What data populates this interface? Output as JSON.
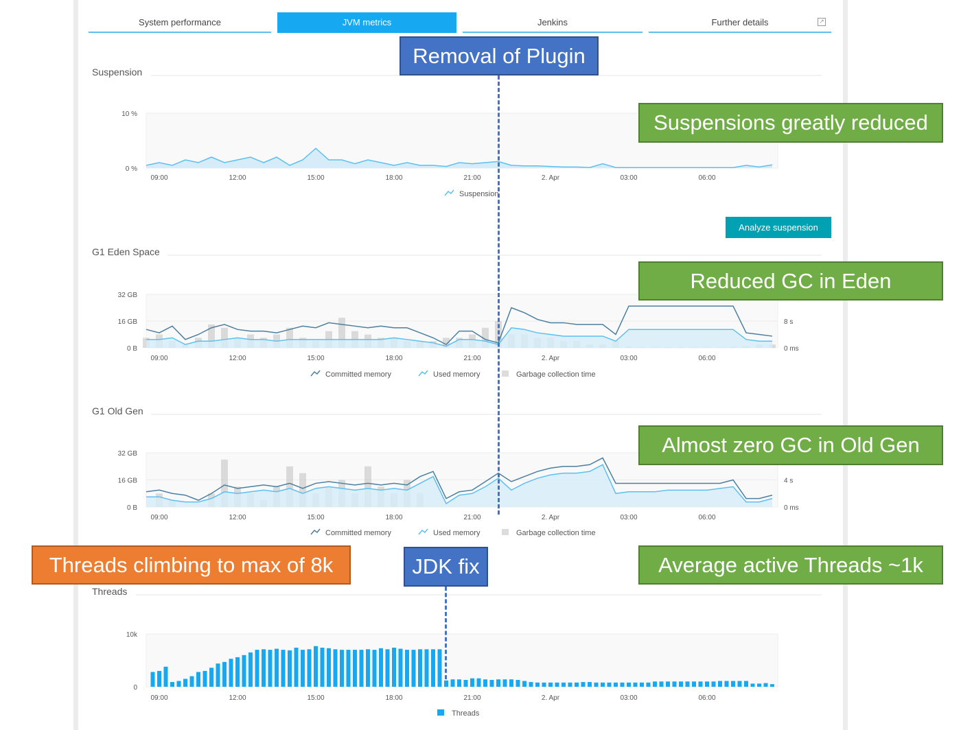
{
  "tabs": [
    {
      "label": "System performance",
      "active": false
    },
    {
      "label": "JVM metrics",
      "active": true
    },
    {
      "label": "Jenkins",
      "active": false
    },
    {
      "label": "Further details",
      "active": false,
      "icon": "external-link-icon"
    }
  ],
  "sections": {
    "suspension": {
      "title": "Suspension",
      "button": "Analyze suspension"
    },
    "eden": {
      "title": "G1 Eden Space"
    },
    "oldgen": {
      "title": "G1 Old Gen"
    },
    "threads": {
      "title": "Threads"
    }
  },
  "annotations": {
    "plugin_removal": "Removal of Plugin",
    "suspensions_reduced": "Suspensions greatly reduced",
    "eden_gc": "Reduced GC in Eden",
    "oldgen_gc": "Almost zero GC in Old Gen",
    "threads_avg": "Average active Threads ~1k",
    "threads_climbing": "Threads climbing to max of 8k",
    "jdk_fix": "JDK fix"
  },
  "colors": {
    "accent": "#16a8f0",
    "committed": "#4a7fa0",
    "used": "#5bc0f0",
    "used_fill": "#d6ecf8",
    "gc": "#c4c4c4",
    "button": "#00a1b2",
    "annotation_blue": "#4472c4",
    "annotation_green": "#70ad47",
    "annotation_orange": "#ed7d31"
  },
  "chart_data": [
    {
      "id": "suspension",
      "type": "area",
      "xticks": [
        "09:00",
        "12:00",
        "15:00",
        "18:00",
        "21:00",
        "2. Apr",
        "03:00",
        "06:00"
      ],
      "yticks": [
        "0 %",
        "10 %"
      ],
      "ylim": [
        0,
        10
      ],
      "x": [
        "08:30",
        "09:00",
        "09:30",
        "10:00",
        "10:30",
        "11:00",
        "11:30",
        "12:00",
        "12:30",
        "13:00",
        "13:30",
        "14:00",
        "14:30",
        "15:00",
        "15:30",
        "16:00",
        "16:30",
        "17:00",
        "17:30",
        "18:00",
        "18:30",
        "19:00",
        "19:30",
        "20:00",
        "20:30",
        "21:00",
        "21:30",
        "22:00",
        "22:30",
        "23:00",
        "23:30",
        "00:00",
        "00:30",
        "01:00",
        "01:30",
        "02:00",
        "02:30",
        "03:00",
        "03:30",
        "04:00",
        "04:30",
        "05:00",
        "05:30",
        "06:00",
        "06:30",
        "07:00",
        "07:30",
        "08:00",
        "08:30"
      ],
      "series": [
        {
          "name": "Suspension",
          "values": [
            0.5,
            1,
            0.5,
            1.5,
            1,
            2,
            1,
            1.5,
            2,
            1,
            2,
            0.5,
            1.5,
            3.6,
            1.5,
            1.5,
            0.8,
            1.5,
            1,
            0.5,
            1,
            0.5,
            0.5,
            0.3,
            1,
            0.8,
            1,
            1.2,
            0.5,
            0.4,
            0.4,
            0.3,
            0.2,
            0.2,
            0.1,
            0.8,
            0.1,
            0.1,
            0.1,
            0.1,
            0.1,
            0.1,
            0.1,
            0.1,
            0.1,
            0.1,
            0.5,
            0.2,
            0.6
          ]
        }
      ],
      "grid": true,
      "legend": "bottom"
    },
    {
      "id": "eden",
      "type": "line",
      "xticks": [
        "09:00",
        "12:00",
        "15:00",
        "18:00",
        "21:00",
        "2. Apr",
        "03:00",
        "06:00"
      ],
      "yticks": [
        "0 B",
        "16 GB",
        "32 GB"
      ],
      "ylim": [
        0,
        32
      ],
      "y2ticks": [
        "0 ms",
        "8 s"
      ],
      "y2lim": [
        0,
        16
      ],
      "x": [
        "08:30",
        "09:00",
        "09:30",
        "10:00",
        "10:30",
        "11:00",
        "11:30",
        "12:00",
        "12:30",
        "13:00",
        "13:30",
        "14:00",
        "14:30",
        "15:00",
        "15:30",
        "16:00",
        "16:30",
        "17:00",
        "17:30",
        "18:00",
        "18:30",
        "19:00",
        "19:30",
        "20:00",
        "20:30",
        "21:00",
        "21:30",
        "22:00",
        "22:30",
        "23:00",
        "23:30",
        "00:00",
        "00:30",
        "01:00",
        "01:30",
        "02:00",
        "02:30",
        "03:00",
        "03:30",
        "04:00",
        "04:30",
        "05:00",
        "05:30",
        "06:00",
        "06:30",
        "07:00",
        "07:30",
        "08:00",
        "08:30"
      ],
      "series": [
        {
          "name": "Committed memory",
          "values": [
            11,
            9,
            13,
            5,
            8,
            12,
            14,
            11,
            10,
            10,
            9,
            11,
            13,
            12,
            15,
            14,
            13,
            12,
            13,
            12,
            12,
            9,
            6,
            2,
            10,
            10,
            5,
            3,
            24,
            21,
            17,
            15,
            15,
            14,
            14,
            14,
            8,
            25,
            25,
            25,
            25,
            25,
            25,
            25,
            25,
            25,
            9,
            8,
            7
          ]
        },
        {
          "name": "Used memory",
          "values": [
            5,
            5,
            6,
            2,
            4,
            4,
            5,
            6,
            5,
            5,
            4,
            5,
            5,
            5,
            5,
            5,
            5,
            5,
            5,
            6,
            5,
            4,
            3,
            1,
            5,
            5,
            4,
            2,
            12,
            11,
            9,
            8,
            7,
            7,
            7,
            7,
            4,
            11,
            11,
            11,
            11,
            11,
            11,
            11,
            11,
            11,
            5,
            4,
            4
          ]
        },
        {
          "name": "Garbage collection time",
          "values": [
            3,
            4,
            2,
            1,
            3,
            7,
            6,
            3,
            4,
            3,
            4,
            6,
            3,
            2,
            5,
            9,
            5,
            4,
            3,
            3,
            2,
            2,
            2,
            3,
            3,
            4,
            6,
            8,
            4,
            4,
            3,
            3,
            2,
            2,
            1,
            1,
            2,
            0.3,
            0.2,
            0.2,
            0.2,
            0.2,
            0.2,
            0.2,
            0.2,
            0.3,
            0.5,
            1,
            1
          ]
        }
      ],
      "grid": true,
      "legend": "bottom"
    },
    {
      "id": "oldgen",
      "type": "line",
      "xticks": [
        "09:00",
        "12:00",
        "15:00",
        "18:00",
        "21:00",
        "2. Apr",
        "03:00",
        "06:00"
      ],
      "yticks": [
        "0 B",
        "16 GB",
        "32 GB"
      ],
      "ylim": [
        0,
        32
      ],
      "y2ticks": [
        "0 ms",
        "4 s"
      ],
      "y2lim": [
        0,
        8
      ],
      "x": [
        "08:30",
        "09:00",
        "09:30",
        "10:00",
        "10:30",
        "11:00",
        "11:30",
        "12:00",
        "12:30",
        "13:00",
        "13:30",
        "14:00",
        "14:30",
        "15:00",
        "15:30",
        "16:00",
        "16:30",
        "17:00",
        "17:30",
        "18:00",
        "18:30",
        "19:00",
        "19:30",
        "20:00",
        "20:30",
        "21:00",
        "21:30",
        "22:00",
        "22:30",
        "23:00",
        "23:30",
        "00:00",
        "00:30",
        "01:00",
        "01:30",
        "02:00",
        "02:30",
        "03:00",
        "03:30",
        "04:00",
        "04:30",
        "05:00",
        "05:30",
        "06:00",
        "06:30",
        "07:00",
        "07:30",
        "08:00",
        "08:30"
      ],
      "series": [
        {
          "name": "Committed memory",
          "values": [
            9,
            10,
            8,
            7,
            4,
            8,
            13,
            11,
            12,
            13,
            12,
            14,
            11,
            14,
            15,
            14,
            13,
            14,
            13,
            14,
            13,
            18,
            21,
            5,
            9,
            10,
            15,
            20,
            15,
            18,
            21,
            23,
            24,
            24,
            25,
            29,
            14,
            14,
            14,
            14,
            14,
            14,
            14,
            14,
            14,
            16,
            5,
            5,
            7
          ]
        },
        {
          "name": "Used memory",
          "values": [
            6,
            6,
            4,
            3,
            3,
            5,
            9,
            8,
            9,
            10,
            9,
            11,
            8,
            11,
            12,
            11,
            10,
            11,
            10,
            11,
            10,
            14,
            18,
            2,
            7,
            8,
            12,
            17,
            10,
            14,
            17,
            19,
            20,
            20,
            21,
            25,
            8,
            9,
            9,
            9,
            10,
            10,
            10,
            10,
            11,
            12,
            3,
            3,
            5
          ]
        },
        {
          "name": "Garbage collection time",
          "values": [
            0,
            2,
            1,
            0,
            0,
            2,
            7,
            3,
            2,
            1,
            3,
            6,
            5,
            2,
            3,
            4,
            2,
            6,
            3,
            2,
            4,
            2,
            0,
            0,
            0,
            0,
            0,
            0,
            0,
            0,
            0,
            0,
            0,
            0,
            0,
            0,
            0,
            0,
            0,
            0,
            0,
            0,
            0,
            0,
            0,
            0,
            0,
            0,
            0
          ]
        }
      ],
      "grid": true,
      "legend": "bottom"
    },
    {
      "id": "threads",
      "type": "bar",
      "xticks": [
        "09:00",
        "12:00",
        "15:00",
        "18:00",
        "21:00",
        "2. Apr",
        "03:00",
        "06:00"
      ],
      "yticks": [
        "0",
        "10k"
      ],
      "ylim": [
        0,
        10000
      ],
      "x": [
        "08:45",
        "09:00",
        "09:15",
        "09:30",
        "09:45",
        "10:00",
        "10:15",
        "10:30",
        "10:45",
        "11:00",
        "11:15",
        "11:30",
        "11:45",
        "12:00",
        "12:15",
        "12:30",
        "12:45",
        "13:00",
        "13:15",
        "13:30",
        "13:45",
        "14:00",
        "14:15",
        "14:30",
        "14:45",
        "15:00",
        "15:15",
        "15:30",
        "15:45",
        "16:00",
        "16:15",
        "16:30",
        "16:45",
        "17:00",
        "17:15",
        "17:30",
        "17:45",
        "18:00",
        "18:15",
        "18:30",
        "18:45",
        "19:00",
        "19:15",
        "19:30",
        "19:45",
        "20:00",
        "20:15",
        "20:30",
        "20:45",
        "21:00",
        "21:15",
        "21:30",
        "21:45",
        "22:00",
        "22:15",
        "22:30",
        "22:45",
        "23:00",
        "23:15",
        "23:30",
        "23:45",
        "00:00",
        "00:15",
        "00:30",
        "00:45",
        "01:00",
        "01:15",
        "01:30",
        "01:45",
        "02:00",
        "02:15",
        "02:30",
        "02:45",
        "03:00",
        "03:15",
        "03:30",
        "03:45",
        "04:00",
        "04:15",
        "04:30",
        "04:45",
        "05:00",
        "05:15",
        "05:30",
        "05:45",
        "06:00",
        "06:15",
        "06:30",
        "06:45",
        "07:00",
        "07:15",
        "07:30",
        "07:45",
        "08:00",
        "08:15",
        "08:30"
      ],
      "series": [
        {
          "name": "Threads",
          "values": [
            2800,
            3000,
            3800,
            900,
            1100,
            1500,
            2000,
            2800,
            3000,
            3600,
            4400,
            4700,
            5300,
            5600,
            6000,
            6500,
            7000,
            7100,
            7000,
            7200,
            7000,
            6900,
            7400,
            7000,
            7100,
            7700,
            7400,
            7300,
            7100,
            7000,
            7000,
            7000,
            7000,
            7100,
            7000,
            7300,
            7100,
            7400,
            7200,
            7000,
            7000,
            7100,
            7100,
            7100,
            7100,
            1200,
            1400,
            1400,
            1300,
            1600,
            1600,
            1400,
            1300,
            1400,
            1400,
            1400,
            1300,
            1100,
            900,
            800,
            800,
            800,
            800,
            800,
            800,
            800,
            900,
            900,
            800,
            800,
            800,
            800,
            800,
            800,
            800,
            800,
            800,
            1000,
            1000,
            1000,
            1000,
            1000,
            1000,
            1000,
            1000,
            1000,
            1000,
            1100,
            1100,
            1100,
            1100,
            1100,
            600,
            600,
            700,
            500
          ]
        }
      ],
      "grid": true,
      "legend": "bottom"
    }
  ]
}
